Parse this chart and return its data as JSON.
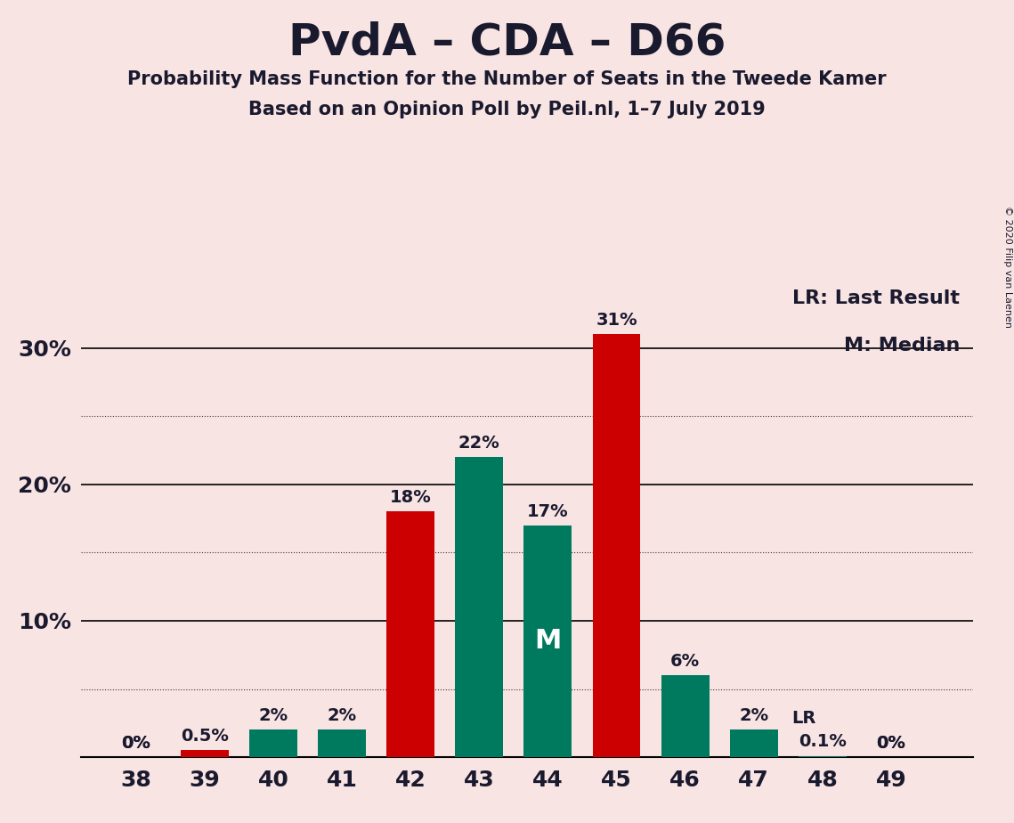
{
  "title": "PvdA – CDA – D66",
  "subtitle1": "Probability Mass Function for the Number of Seats in the Tweede Kamer",
  "subtitle2": "Based on an Opinion Poll by Peil.nl, 1–7 July 2019",
  "categories": [
    38,
    39,
    40,
    41,
    42,
    43,
    44,
    45,
    46,
    47,
    48,
    49
  ],
  "values": [
    0.0,
    0.5,
    2.0,
    2.0,
    18.0,
    22.0,
    17.0,
    31.0,
    6.0,
    2.0,
    0.1,
    0.0
  ],
  "labels": [
    "0%",
    "0.5%",
    "2%",
    "2%",
    "18%",
    "22%",
    "17%",
    "31%",
    "6%",
    "2%",
    "0.1%",
    "0%"
  ],
  "colors": [
    "#cc0000",
    "#cc0000",
    "#007a5e",
    "#007a5e",
    "#cc0000",
    "#007a5e",
    "#007a5e",
    "#cc0000",
    "#007a5e",
    "#007a5e",
    "#007a5e",
    "#cc0000"
  ],
  "background_color": "#f9e4e4",
  "text_color": "#1a1a2e",
  "median_bar": 44,
  "lr_bar": 47,
  "legend_lr": "LR: Last Result",
  "legend_m": "M: Median",
  "copyright": "© 2020 Filip van Laenen",
  "ylim": [
    0,
    35
  ],
  "major_yticks": [
    10,
    20,
    30
  ],
  "dotted_yticks": [
    5,
    15,
    25
  ],
  "bar_width": 0.7
}
